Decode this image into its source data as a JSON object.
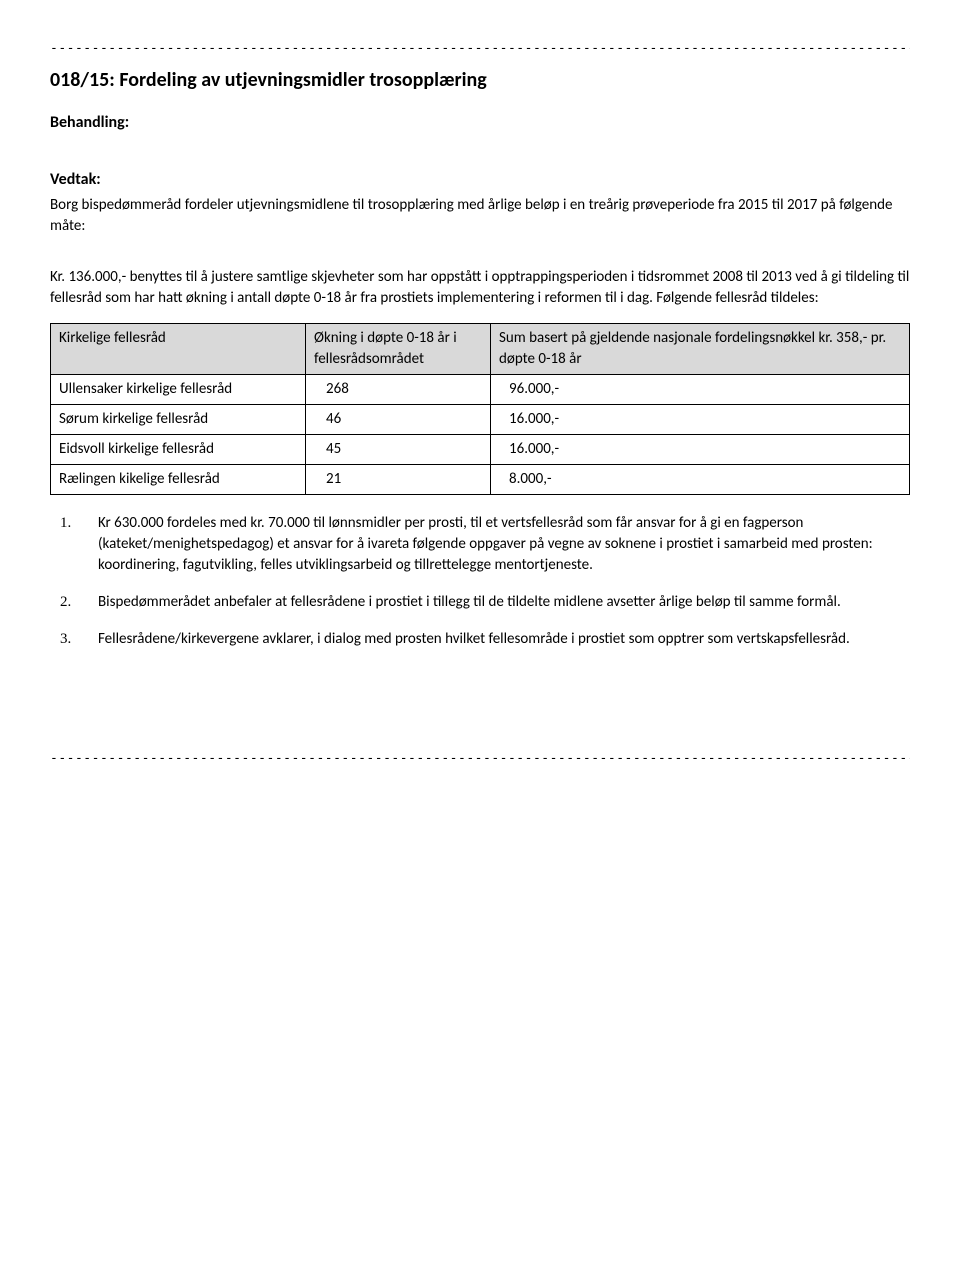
{
  "divider": "-----------------------------------------------------------------------------------------------------------------------",
  "title": "018/15: Fordeling av utjevningsmidler trosopplæring",
  "behandling_label": "Behandling:",
  "vedtak_label": "Vedtak:",
  "vedtak_intro": "Borg bispedømmeråd fordeler utjevningsmidlene til trosopplæring med årlige beløp i en treårig prøveperiode fra 2015 til 2017 på følgende måte:",
  "kr_line": "Kr. 136.000,- benyttes til å justere samtlige skjevheter som har oppstått i opptrappingsperioden i tidsrommet 2008 til 2013 ved å gi tildeling til fellesråd som har hatt økning i antall døpte 0-18 år fra prostiets implementering i reformen til i dag. Følgende fellesråd tildeles:",
  "table": {
    "header": {
      "col1": "Kirkelige fellesråd",
      "col2": "Økning i døpte 0-18 år i fellesrådsområdet",
      "col3": "Sum basert på gjeldende nasjonale fordelingsnøkkel kr. 358,- pr. døpte 0-18 år"
    },
    "rows": [
      {
        "name": "Ullensaker kirkelige fellesråd",
        "increase": "268",
        "sum": "96.000,-"
      },
      {
        "name": "Sørum kirkelige fellesråd",
        "increase": "  46",
        "sum": "16.000,-"
      },
      {
        "name": "Eidsvoll kirkelige fellesråd",
        "increase": "  45",
        "sum": "16.000,-"
      },
      {
        "name": "Rælingen kikelige fellesråd",
        "increase": "  21",
        "sum": "  8.000,-"
      }
    ]
  },
  "list": {
    "item1": "Kr 630.000 fordeles med kr. 70.000 til lønnsmidler per prosti, til et vertsfellesråd som får ansvar for å gi en fagperson (kateket/menighetspedagog) et ansvar for å ivareta følgende oppgaver på vegne av soknene i prostiet i samarbeid med prosten: koordinering, fagutvikling, felles utviklingsarbeid og tillrettelegge mentortjeneste.",
    "item2": "Bispedømmerådet anbefaler at fellesrådene i prostiet i tillegg til de tildelte midlene avsetter årlige beløp til samme formål.",
    "item3": "Fellesrådene/kirkevergene avklarer, i dialog med prosten hvilket fellesområde i prostiet som opptrer som vertskapsfellesråd."
  }
}
